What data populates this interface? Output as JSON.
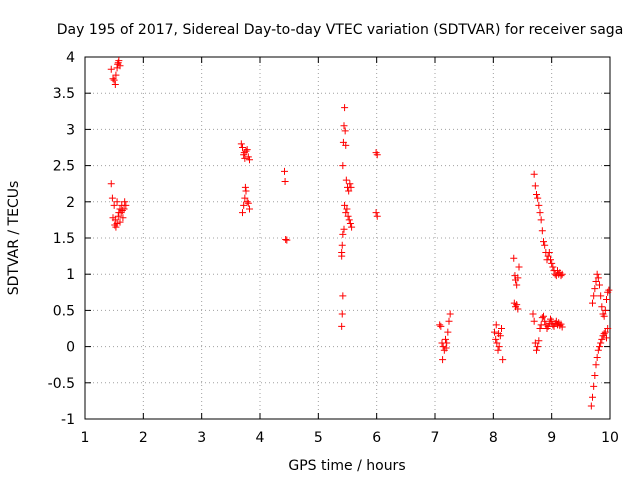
{
  "chart_data": {
    "type": "scatter",
    "title": "Day 195 of 2017, Sidereal Day-to-day VTEC variation (SDTVAR) for receiver saga",
    "xlabel": "GPS time / hours",
    "ylabel": "SDTVAR / TECUs",
    "xlim": [
      1,
      10
    ],
    "ylim": [
      -1,
      4
    ],
    "xticks": [
      "1",
      "2",
      "3",
      "4",
      "5",
      "6",
      "7",
      "8",
      "9",
      "10"
    ],
    "yticks": [
      "-1",
      "-0.5",
      "0",
      "0.5",
      "1",
      "1.5",
      "2",
      "2.5",
      "3",
      "3.5",
      "4"
    ],
    "xtick_values": [
      1,
      2,
      3,
      4,
      5,
      6,
      7,
      8,
      9,
      10
    ],
    "ytick_values": [
      -1,
      -0.5,
      0,
      0.5,
      1,
      1.5,
      2,
      2.5,
      3,
      3.5,
      4
    ],
    "grid": true,
    "marker": "plus",
    "color": "#ff0000",
    "series": [
      {
        "name": "SDTVAR",
        "points": [
          [
            1.45,
            3.83
          ],
          [
            1.48,
            3.7
          ],
          [
            1.5,
            3.68
          ],
          [
            1.52,
            3.62
          ],
          [
            1.53,
            3.75
          ],
          [
            1.55,
            3.85
          ],
          [
            1.56,
            3.9
          ],
          [
            1.58,
            3.95
          ],
          [
            1.6,
            3.88
          ],
          [
            1.57,
            3.92
          ],
          [
            1.45,
            2.25
          ],
          [
            1.47,
            2.05
          ],
          [
            1.5,
            1.95
          ],
          [
            1.52,
            1.75
          ],
          [
            1.53,
            1.65
          ],
          [
            1.55,
            1.7
          ],
          [
            1.57,
            1.8
          ],
          [
            1.58,
            1.85
          ],
          [
            1.6,
            1.9
          ],
          [
            1.62,
            1.85
          ],
          [
            1.63,
            1.95
          ],
          [
            1.65,
            1.78
          ],
          [
            1.67,
            1.9
          ],
          [
            1.68,
            2.0
          ],
          [
            1.7,
            1.95
          ],
          [
            1.55,
            2.0
          ],
          [
            1.48,
            1.78
          ],
          [
            1.6,
            1.72
          ],
          [
            1.64,
            1.88
          ],
          [
            1.51,
            1.68
          ],
          [
            3.68,
            2.8
          ],
          [
            3.7,
            2.75
          ],
          [
            3.72,
            2.65
          ],
          [
            3.74,
            2.6
          ],
          [
            3.76,
            2.7
          ],
          [
            3.78,
            2.72
          ],
          [
            3.8,
            2.62
          ],
          [
            3.82,
            2.58
          ],
          [
            3.73,
            2.68
          ],
          [
            3.7,
            1.85
          ],
          [
            3.72,
            1.95
          ],
          [
            3.74,
            2.05
          ],
          [
            3.76,
            2.15
          ],
          [
            3.78,
            2.0
          ],
          [
            3.8,
            1.98
          ],
          [
            3.82,
            1.9
          ],
          [
            3.75,
            2.2
          ],
          [
            4.42,
            2.42
          ],
          [
            4.43,
            2.28
          ],
          [
            4.44,
            1.48
          ],
          [
            4.46,
            1.47
          ],
          [
            5.45,
            3.3
          ],
          [
            5.44,
            3.05
          ],
          [
            5.46,
            2.98
          ],
          [
            5.43,
            2.82
          ],
          [
            5.47,
            2.78
          ],
          [
            5.42,
            2.5
          ],
          [
            5.48,
            2.3
          ],
          [
            5.5,
            2.2
          ],
          [
            5.52,
            2.15
          ],
          [
            5.54,
            2.25
          ],
          [
            5.56,
            2.2
          ],
          [
            5.45,
            1.95
          ],
          [
            5.47,
            1.85
          ],
          [
            5.49,
            1.9
          ],
          [
            5.51,
            1.8
          ],
          [
            5.53,
            1.75
          ],
          [
            5.55,
            1.7
          ],
          [
            5.57,
            1.65
          ],
          [
            5.44,
            1.62
          ],
          [
            5.42,
            1.55
          ],
          [
            5.41,
            1.4
          ],
          [
            5.4,
            1.3
          ],
          [
            5.4,
            1.25
          ],
          [
            5.42,
            0.7
          ],
          [
            5.41,
            0.45
          ],
          [
            5.4,
            0.28
          ],
          [
            5.99,
            2.68
          ],
          [
            6.01,
            2.65
          ],
          [
            5.99,
            1.85
          ],
          [
            6.01,
            1.8
          ],
          [
            7.08,
            0.3
          ],
          [
            7.1,
            0.28
          ],
          [
            7.12,
            0.05
          ],
          [
            7.14,
            0.0
          ],
          [
            7.16,
            -0.05
          ],
          [
            7.18,
            0.1
          ],
          [
            7.2,
            0.05
          ],
          [
            7.22,
            0.2
          ],
          [
            7.24,
            0.35
          ],
          [
            7.26,
            0.45
          ],
          [
            7.13,
            -0.18
          ],
          [
            7.19,
            -0.02
          ],
          [
            8.02,
            0.2
          ],
          [
            8.04,
            0.1
          ],
          [
            8.06,
            0.05
          ],
          [
            8.08,
            -0.05
          ],
          [
            8.1,
            0.0
          ],
          [
            8.12,
            0.15
          ],
          [
            8.14,
            0.25
          ],
          [
            8.16,
            -0.18
          ],
          [
            8.05,
            0.3
          ],
          [
            8.09,
            0.18
          ],
          [
            8.35,
            1.22
          ],
          [
            8.37,
            0.98
          ],
          [
            8.38,
            0.92
          ],
          [
            8.4,
            0.85
          ],
          [
            8.42,
            0.95
          ],
          [
            8.44,
            1.1
          ],
          [
            8.36,
            0.6
          ],
          [
            8.38,
            0.55
          ],
          [
            8.4,
            0.58
          ],
          [
            8.42,
            0.52
          ],
          [
            8.7,
            2.38
          ],
          [
            8.72,
            2.22
          ],
          [
            8.74,
            2.1
          ],
          [
            8.76,
            2.05
          ],
          [
            8.78,
            1.95
          ],
          [
            8.8,
            1.85
          ],
          [
            8.82,
            1.75
          ],
          [
            8.84,
            1.6
          ],
          [
            8.86,
            1.45
          ],
          [
            8.88,
            1.4
          ],
          [
            8.9,
            1.3
          ],
          [
            8.92,
            1.2
          ],
          [
            8.94,
            1.25
          ],
          [
            8.96,
            1.3
          ],
          [
            8.98,
            1.2
          ],
          [
            9.0,
            1.15
          ],
          [
            9.02,
            1.1
          ],
          [
            9.04,
            1.05
          ],
          [
            9.06,
            1.0
          ],
          [
            9.08,
            0.98
          ],
          [
            9.1,
            1.05
          ],
          [
            9.12,
            1.0
          ],
          [
            9.14,
            1.02
          ],
          [
            9.16,
            0.98
          ],
          [
            9.18,
            1.0
          ],
          [
            8.68,
            0.45
          ],
          [
            8.7,
            0.35
          ],
          [
            8.72,
            0.05
          ],
          [
            8.74,
            -0.05
          ],
          [
            8.76,
            0.0
          ],
          [
            8.78,
            0.08
          ],
          [
            8.8,
            0.25
          ],
          [
            8.82,
            0.3
          ],
          [
            8.84,
            0.4
          ],
          [
            8.86,
            0.42
          ],
          [
            8.88,
            0.35
          ],
          [
            8.9,
            0.3
          ],
          [
            8.92,
            0.25
          ],
          [
            8.94,
            0.28
          ],
          [
            8.96,
            0.32
          ],
          [
            8.98,
            0.38
          ],
          [
            9.0,
            0.35
          ],
          [
            9.02,
            0.3
          ],
          [
            9.04,
            0.28
          ],
          [
            9.06,
            0.32
          ],
          [
            9.08,
            0.35
          ],
          [
            9.1,
            0.3
          ],
          [
            9.12,
            0.33
          ],
          [
            9.14,
            0.29
          ],
          [
            9.16,
            0.31
          ],
          [
            9.18,
            0.27
          ],
          [
            9.68,
            -0.82
          ],
          [
            9.7,
            -0.7
          ],
          [
            9.72,
            -0.55
          ],
          [
            9.74,
            -0.4
          ],
          [
            9.76,
            -0.25
          ],
          [
            9.78,
            -0.15
          ],
          [
            9.8,
            -0.05
          ],
          [
            9.82,
            0.0
          ],
          [
            9.84,
            0.05
          ],
          [
            9.86,
            0.1
          ],
          [
            9.88,
            0.15
          ],
          [
            9.9,
            0.18
          ],
          [
            9.92,
            0.2
          ],
          [
            9.94,
            0.12
          ],
          [
            9.96,
            0.25
          ],
          [
            9.7,
            0.6
          ],
          [
            9.72,
            0.7
          ],
          [
            9.74,
            0.8
          ],
          [
            9.76,
            0.9
          ],
          [
            9.78,
            1.0
          ],
          [
            9.8,
            0.95
          ],
          [
            9.82,
            0.85
          ],
          [
            9.84,
            0.7
          ],
          [
            9.86,
            0.55
          ],
          [
            9.88,
            0.45
          ],
          [
            9.9,
            0.42
          ],
          [
            9.92,
            0.5
          ],
          [
            9.94,
            0.65
          ],
          [
            9.96,
            0.75
          ],
          [
            9.98,
            0.78
          ]
        ]
      }
    ]
  }
}
